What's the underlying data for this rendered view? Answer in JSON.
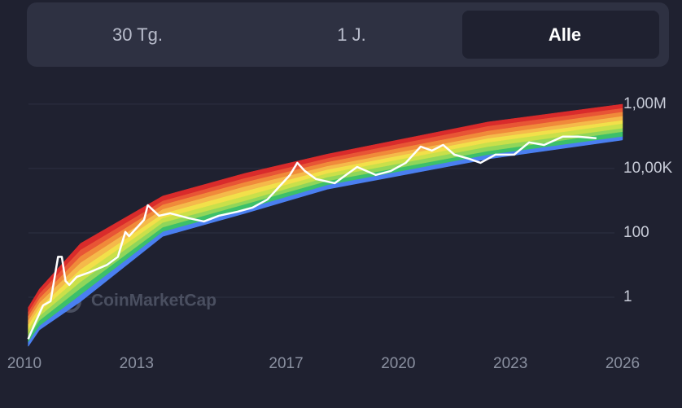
{
  "tabs": [
    "30 Tg.",
    "1 J.",
    "Alle"
  ],
  "chart_data": {
    "type": "line",
    "watermark": "CoinMarketCap",
    "x": [
      2010.1,
      2010.3,
      2010.5,
      2010.7,
      2010.9,
      2011.0,
      2011.1,
      2011.2,
      2011.4,
      2011.7,
      2012.2,
      2012.5,
      2012.7,
      2012.8,
      2013.2,
      2013.3,
      2013.6,
      2013.9,
      2014.4,
      2014.8,
      2015.2,
      2015.7,
      2016.1,
      2016.5,
      2016.9,
      2017.1,
      2017.3,
      2017.5,
      2017.8,
      2018.3,
      2018.6,
      2018.9,
      2019.4,
      2019.8,
      2020.2,
      2020.6,
      2020.9,
      2021.2,
      2021.5,
      2021.9,
      2022.2,
      2022.6,
      2023.1,
      2023.5,
      2023.9,
      2024.4,
      2024.8,
      2025.3
    ],
    "values": [
      0.05,
      0.17,
      0.56,
      0.75,
      18,
      18,
      3.2,
      2.4,
      4.3,
      5.7,
      10,
      18,
      107,
      79,
      255,
      724,
      340,
      405,
      286,
      226,
      340,
      455,
      610,
      1090,
      3490,
      6250,
      15000,
      8400,
      4700,
      3500,
      6300,
      11200,
      6300,
      8400,
      15000,
      48000,
      36000,
      54000,
      27000,
      20000,
      15000,
      27000,
      27000,
      65000,
      54000,
      98000,
      98000,
      87000
    ],
    "color": "#ffffff",
    "log_scale_y": true,
    "grid": true,
    "xlim": [
      2010,
      2026
    ],
    "xticks": [
      2010,
      2013,
      2017,
      2020,
      2023,
      2026
    ],
    "ylim": [
      0.01,
      2000000
    ],
    "yticks": [
      1,
      100,
      {
        "value": 10000,
        "label": "10,00K"
      },
      {
        "value": 1000000,
        "label": "1,00M"
      }
    ],
    "rainbow": {
      "x": [
        2010.1,
        2010.4,
        2011.5,
        2013.7,
        2015.9,
        2018.1,
        2022.4,
        2026
      ],
      "colors": [
        "#4a7ff0",
        "#3cc06a",
        "#8fd65a",
        "#c9e04a",
        "#f2e04a",
        "#f5b94a",
        "#f08a3a",
        "#e85535",
        "#d92b2b"
      ],
      "edges": [
        [
          0.03,
          0.098,
          0.74,
          79,
          410,
          2300,
          20000,
          78000
        ],
        [
          0.041,
          0.13,
          1.2,
          110,
          560,
          3100,
          27000,
          100000
        ],
        [
          0.056,
          0.19,
          1.9,
          150,
          780,
          4100,
          35000,
          140000
        ],
        [
          0.076,
          0.26,
          3.0,
          210,
          1000,
          5400,
          48000,
          180000
        ],
        [
          0.1,
          0.35,
          4.7,
          290,
          1400,
          7100,
          65000,
          250000
        ],
        [
          0.14,
          0.49,
          7.4,
          400,
          2000,
          9300,
          87000,
          320000
        ],
        [
          0.19,
          0.68,
          12,
          550,
          2800,
          12000,
          110000,
          430000
        ],
        [
          0.26,
          0.93,
          19,
          760,
          3800,
          16000,
          150000,
          580000
        ],
        [
          0.35,
          1.3,
          30,
          1000,
          5100,
          21000,
          210000,
          760000
        ],
        [
          0.48,
          1.8,
          47,
          1400,
          7100,
          28000,
          280000,
          1000000
        ]
      ]
    }
  }
}
